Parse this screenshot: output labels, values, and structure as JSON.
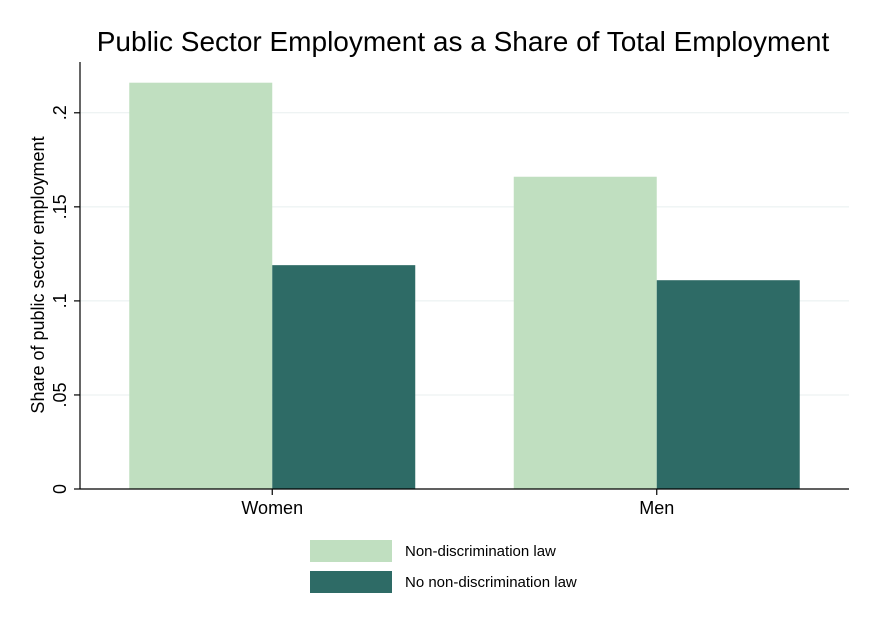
{
  "chart_data": {
    "type": "bar",
    "title": "Public Sector Employment as a Share of Total Employment",
    "xlabel": "",
    "ylabel": "Share of public sector employment",
    "categories": [
      "Women",
      "Men"
    ],
    "series": [
      {
        "name": "Non-discrimination law",
        "values": [
          0.216,
          0.166
        ],
        "color": "#c0dfc0"
      },
      {
        "name": "No non-discrimination law",
        "values": [
          0.119,
          0.111
        ],
        "color": "#2e6b66"
      }
    ],
    "ylim": [
      0,
      0.227
    ],
    "yticks": [
      0,
      0.05,
      0.1,
      0.15,
      0.2
    ],
    "ytick_labels": [
      "0",
      ".05",
      ".1",
      ".15",
      ".2"
    ],
    "grid": true,
    "legend_position": "bottom"
  }
}
